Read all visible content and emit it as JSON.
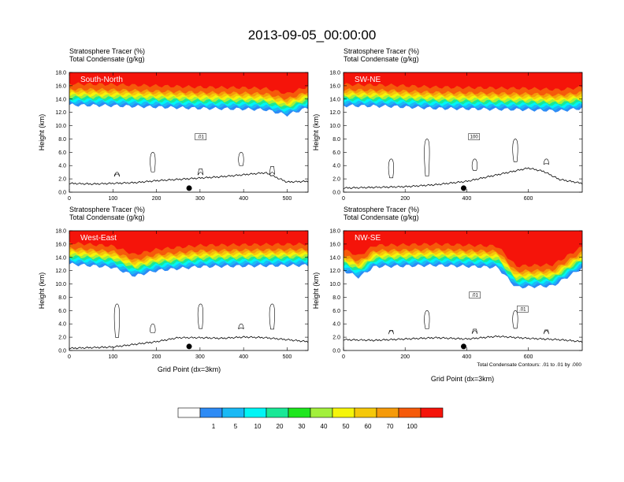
{
  "figure": {
    "title": "2013-09-05_00:00:00",
    "x_axis_label": "Grid Point (dx=3km)",
    "y_axis_label": "Height (km)",
    "contour_note": "Total Condensate Contours: .01 to .01 by .000"
  },
  "colorbar": {
    "colors": [
      "#ffffff",
      "#2e8bf5",
      "#1ab9f5",
      "#00f5f5",
      "#19e896",
      "#1ee61e",
      "#a2f03c",
      "#f5f50a",
      "#f5c80a",
      "#f59a0a",
      "#f55a0a",
      "#f5140a"
    ],
    "labels": [
      "1",
      "5",
      "10",
      "20",
      "30",
      "40",
      "50",
      "60",
      "70",
      "100"
    ]
  },
  "chart_data": [
    {
      "type": "contour",
      "panel": "South-North",
      "fill_variable": "Stratosphere Tracer",
      "fill_units": "(%)",
      "contour_variable": "Total Condensate",
      "contour_units": "(g/kg)",
      "xlim": [
        0,
        548
      ],
      "xticks": [
        "0",
        "100",
        "200",
        "300",
        "400",
        "500"
      ],
      "ylim": [
        0,
        18
      ],
      "yticks": [
        "0.0",
        "2.0",
        "4.0",
        "6.0",
        "8.0",
        "10.0",
        "12.0",
        "14.0",
        "16.0",
        "18.0"
      ],
      "marker_x": 275,
      "contour_labels": [
        ".01"
      ],
      "tracer_base_km": [
        [
          0,
          13.1
        ],
        [
          100,
          13.0
        ],
        [
          200,
          12.8
        ],
        [
          300,
          12.6
        ],
        [
          400,
          12.5
        ],
        [
          450,
          12.4
        ],
        [
          500,
          11.6
        ],
        [
          548,
          12.7
        ]
      ],
      "terrain_km": [
        [
          0,
          1.2
        ],
        [
          50,
          1.1
        ],
        [
          100,
          1.2
        ],
        [
          150,
          1.3
        ],
        [
          200,
          1.6
        ],
        [
          250,
          1.8
        ],
        [
          300,
          2.0
        ],
        [
          350,
          2.2
        ],
        [
          400,
          2.5
        ],
        [
          450,
          2.8
        ],
        [
          500,
          1.4
        ],
        [
          548,
          1.5
        ]
      ]
    },
    {
      "type": "contour",
      "panel": "SW-NE",
      "fill_variable": "Stratosphere Tracer",
      "fill_units": "(%)",
      "contour_variable": "Total Condensate",
      "contour_units": "(g/kg)",
      "xlim": [
        0,
        775
      ],
      "xticks": [
        "0",
        "200",
        "400",
        "600"
      ],
      "ylim": [
        0,
        18
      ],
      "yticks": [
        "0.0",
        "2.0",
        "4.0",
        "6.0",
        "8.0",
        "10.0",
        "12.0",
        "14.0",
        "16.0",
        "18.0"
      ],
      "marker_x": 390,
      "contour_labels": [
        "100"
      ],
      "tracer_base_km": [
        [
          0,
          13.0
        ],
        [
          150,
          12.9
        ],
        [
          300,
          12.6
        ],
        [
          450,
          12.5
        ],
        [
          600,
          12.4
        ],
        [
          700,
          12.2
        ],
        [
          775,
          12.6
        ]
      ],
      "terrain_km": [
        [
          0,
          0.5
        ],
        [
          100,
          0.6
        ],
        [
          200,
          0.7
        ],
        [
          300,
          1.0
        ],
        [
          400,
          1.5
        ],
        [
          500,
          2.5
        ],
        [
          600,
          3.5
        ],
        [
          650,
          3.0
        ],
        [
          700,
          1.8
        ],
        [
          775,
          1.2
        ]
      ]
    },
    {
      "type": "contour",
      "panel": "West-East",
      "fill_variable": "Stratosphere Tracer",
      "fill_units": "(%)",
      "contour_variable": "Total Condensate",
      "contour_units": "(g/kg)",
      "xlim": [
        0,
        548
      ],
      "xticks": [
        "0",
        "100",
        "200",
        "300",
        "400",
        "500"
      ],
      "ylim": [
        0,
        18
      ],
      "yticks": [
        "0.0",
        "2.0",
        "4.0",
        "6.0",
        "8.0",
        "10.0",
        "12.0",
        "14.0",
        "16.0",
        "18.0"
      ],
      "marker_x": 275,
      "contour_labels": [],
      "tracer_base_km": [
        [
          0,
          13.0
        ],
        [
          100,
          12.5
        ],
        [
          150,
          11.2
        ],
        [
          200,
          12.0
        ],
        [
          300,
          12.6
        ],
        [
          400,
          12.7
        ],
        [
          548,
          12.8
        ]
      ],
      "terrain_km": [
        [
          0,
          0.2
        ],
        [
          50,
          0.3
        ],
        [
          100,
          0.4
        ],
        [
          150,
          0.8
        ],
        [
          200,
          1.2
        ],
        [
          250,
          1.8
        ],
        [
          300,
          1.8
        ],
        [
          350,
          1.7
        ],
        [
          400,
          1.9
        ],
        [
          450,
          1.8
        ],
        [
          548,
          1.2
        ]
      ]
    },
    {
      "type": "contour",
      "panel": "NW-SE",
      "fill_variable": "Stratosphere Tracer",
      "fill_units": "(%)",
      "contour_variable": "Total Condensate",
      "contour_units": "(g/kg)",
      "xlim": [
        0,
        775
      ],
      "xticks": [
        "0",
        "200",
        "400",
        "600"
      ],
      "ylim": [
        0,
        18
      ],
      "yticks": [
        "0.0",
        "2.0",
        "4.0",
        "6.0",
        "8.0",
        "10.0",
        "12.0",
        "14.0",
        "16.0",
        "18.0"
      ],
      "marker_x": 390,
      "contour_labels": [
        ".01",
        ".01"
      ],
      "tracer_base_km": [
        [
          0,
          12.0
        ],
        [
          50,
          11.0
        ],
        [
          100,
          12.6
        ],
        [
          300,
          12.8
        ],
        [
          500,
          12.5
        ],
        [
          560,
          9.5
        ],
        [
          680,
          9.7
        ],
        [
          775,
          12.4
        ]
      ],
      "terrain_km": [
        [
          0,
          1.5
        ],
        [
          100,
          1.4
        ],
        [
          200,
          1.6
        ],
        [
          300,
          1.8
        ],
        [
          400,
          1.6
        ],
        [
          500,
          2.0
        ],
        [
          600,
          1.7
        ],
        [
          700,
          1.5
        ],
        [
          775,
          1.2
        ]
      ]
    }
  ]
}
